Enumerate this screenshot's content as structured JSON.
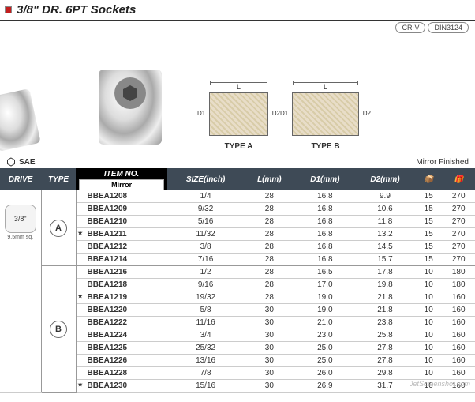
{
  "title": "3/8\" DR. 6PT Sockets",
  "badges": [
    "CR-V",
    "DIN3124"
  ],
  "diagrams": {
    "L": "L",
    "D1": "D1",
    "D2": "D2",
    "typeA": "TYPE A",
    "typeB": "TYPE B"
  },
  "sae_label": "SAE",
  "mirror_finished": "Mirror Finished",
  "columns": {
    "drive": "DRIVE",
    "type": "TYPE",
    "item": "ITEM NO.",
    "mirror": "Mirror",
    "size": "SIZE(inch)",
    "l": "L(mm)",
    "d1": "D1(mm)",
    "d2": "D2(mm)"
  },
  "drive": {
    "size": "3/8\"",
    "sub": "9.5mm sq."
  },
  "types": [
    "A",
    "B"
  ],
  "groupA": [
    {
      "star": false,
      "item": "BBEA1208",
      "size": "1/4",
      "l": "28",
      "d1": "16.8",
      "d2": "9.9",
      "qs": "15",
      "qb": "270"
    },
    {
      "star": false,
      "item": "BBEA1209",
      "size": "9/32",
      "l": "28",
      "d1": "16.8",
      "d2": "10.6",
      "qs": "15",
      "qb": "270"
    },
    {
      "star": false,
      "item": "BBEA1210",
      "size": "5/16",
      "l": "28",
      "d1": "16.8",
      "d2": "11.8",
      "qs": "15",
      "qb": "270"
    },
    {
      "star": true,
      "item": "BBEA1211",
      "size": "11/32",
      "l": "28",
      "d1": "16.8",
      "d2": "13.2",
      "qs": "15",
      "qb": "270"
    },
    {
      "star": false,
      "item": "BBEA1212",
      "size": "3/8",
      "l": "28",
      "d1": "16.8",
      "d2": "14.5",
      "qs": "15",
      "qb": "270"
    },
    {
      "star": false,
      "item": "BBEA1214",
      "size": "7/16",
      "l": "28",
      "d1": "16.8",
      "d2": "15.7",
      "qs": "15",
      "qb": "270"
    }
  ],
  "groupB": [
    {
      "star": false,
      "item": "BBEA1216",
      "size": "1/2",
      "l": "28",
      "d1": "16.5",
      "d2": "17.8",
      "qs": "10",
      "qb": "180"
    },
    {
      "star": false,
      "item": "BBEA1218",
      "size": "9/16",
      "l": "28",
      "d1": "17.0",
      "d2": "19.8",
      "qs": "10",
      "qb": "180"
    },
    {
      "star": true,
      "item": "BBEA1219",
      "size": "19/32",
      "l": "28",
      "d1": "19.0",
      "d2": "21.8",
      "qs": "10",
      "qb": "160"
    },
    {
      "star": false,
      "item": "BBEA1220",
      "size": "5/8",
      "l": "30",
      "d1": "19.0",
      "d2": "21.8",
      "qs": "10",
      "qb": "160"
    },
    {
      "star": false,
      "item": "BBEA1222",
      "size": "11/16",
      "l": "30",
      "d1": "21.0",
      "d2": "23.8",
      "qs": "10",
      "qb": "160"
    },
    {
      "star": false,
      "item": "BBEA1224",
      "size": "3/4",
      "l": "30",
      "d1": "23.0",
      "d2": "25.8",
      "qs": "10",
      "qb": "160"
    },
    {
      "star": false,
      "item": "BBEA1225",
      "size": "25/32",
      "l": "30",
      "d1": "25.0",
      "d2": "27.8",
      "qs": "10",
      "qb": "160"
    },
    {
      "star": false,
      "item": "BBEA1226",
      "size": "13/16",
      "l": "30",
      "d1": "25.0",
      "d2": "27.8",
      "qs": "10",
      "qb": "160"
    },
    {
      "star": false,
      "item": "BBEA1228",
      "size": "7/8",
      "l": "30",
      "d1": "26.0",
      "d2": "29.8",
      "qs": "10",
      "qb": "160"
    },
    {
      "star": true,
      "item": "BBEA1230",
      "size": "15/16",
      "l": "30",
      "d1": "26.9",
      "d2": "31.7",
      "qs": "10",
      "qb": "160"
    }
  ],
  "watermark": "JetScreenshot.com"
}
